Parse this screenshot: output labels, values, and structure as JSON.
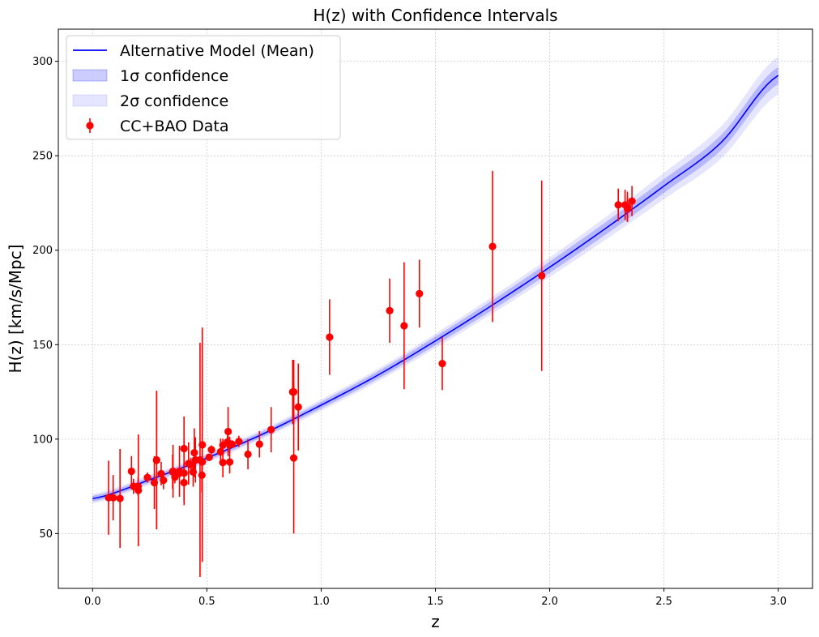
{
  "chart_data": {
    "type": "line",
    "title": "H(z) with Confidence Intervals",
    "xlabel": "z",
    "ylabel": "H(z) [km/s/Mpc]",
    "xlim": [
      -0.15,
      3.15
    ],
    "ylim": [
      21,
      317
    ],
    "xticks": [
      0.0,
      0.5,
      1.0,
      1.5,
      2.0,
      2.5,
      3.0
    ],
    "xtick_labels": [
      "0.0",
      "0.5",
      "1.0",
      "1.5",
      "2.0",
      "2.5",
      "3.0"
    ],
    "yticks": [
      50,
      100,
      150,
      200,
      250,
      300
    ],
    "ytick_labels": [
      "50",
      "100",
      "150",
      "200",
      "250",
      "300"
    ],
    "grid": true,
    "legend_position": "top-left",
    "colors": {
      "model": "#0000ff",
      "band1": "#0000ff",
      "band2": "#0000ff",
      "data": "#ff0000"
    },
    "legend": [
      {
        "label": "Alternative Model (Mean)",
        "kind": "line"
      },
      {
        "label": "1σ confidence",
        "kind": "band1"
      },
      {
        "label": "2σ confidence",
        "kind": "band2"
      },
      {
        "label": "CC+BAO Data",
        "kind": "errorbar"
      }
    ],
    "model": {
      "name": "Alternative Model (Mean)",
      "z": [
        0.0,
        0.25,
        0.5,
        0.75,
        1.0,
        1.25,
        1.5,
        1.75,
        2.0,
        2.25,
        2.5,
        2.75,
        3.0
      ],
      "H": [
        68.5,
        78.5,
        90.0,
        103.0,
        118.0,
        134.0,
        152.0,
        171.0,
        191.0,
        212.0,
        234.0,
        257.0,
        292.5
      ],
      "sigma1": [
        1.5,
        1.5,
        1.5,
        1.5,
        1.8,
        2.0,
        2.3,
        2.6,
        3.0,
        3.3,
        3.6,
        4.0,
        4.5
      ],
      "sigma2": [
        2.5,
        2.5,
        2.5,
        2.5,
        3.0,
        3.3,
        3.8,
        4.5,
        5.2,
        6.0,
        7.0,
        8.5,
        10.0
      ]
    },
    "data": {
      "name": "CC+BAO Data",
      "z": [
        0.07,
        0.09,
        0.12,
        0.17,
        0.179,
        0.199,
        0.2,
        0.24,
        0.27,
        0.28,
        0.28,
        0.3,
        0.31,
        0.35,
        0.352,
        0.36,
        0.38,
        0.3802,
        0.4,
        0.4,
        0.4004,
        0.42,
        0.43,
        0.44,
        0.445,
        0.45,
        0.47,
        0.4783,
        0.48,
        0.48,
        0.51,
        0.52,
        0.56,
        0.57,
        0.57,
        0.59,
        0.593,
        0.6,
        0.6,
        0.61,
        0.64,
        0.6797,
        0.73,
        0.7812,
        0.8754,
        0.88,
        0.88,
        0.9,
        1.037,
        1.3,
        1.363,
        1.43,
        1.53,
        1.75,
        1.965,
        2.3,
        2.33,
        2.34,
        2.34,
        2.36
      ],
      "H": [
        69.0,
        69.0,
        68.6,
        83.0,
        75.0,
        75.0,
        72.9,
        79.7,
        77.0,
        88.8,
        89.0,
        81.7,
        78.2,
        82.7,
        83.0,
        79.9,
        81.9,
        83.0,
        77.0,
        95.0,
        82.0,
        87.1,
        86.5,
        82.6,
        92.8,
        89.0,
        89.0,
        80.9,
        97.0,
        87.9,
        90.4,
        94.4,
        93.3,
        87.6,
        96.8,
        98.5,
        104.0,
        87.9,
        97.3,
        97.3,
        98.8,
        92.0,
        97.3,
        105.0,
        125.0,
        90.0,
        125.0,
        117.0,
        154.0,
        168.0,
        160.0,
        177.0,
        140.0,
        202.0,
        186.5,
        224.0,
        224.0,
        222.0,
        223.0,
        226.0
      ],
      "err": [
        19.6,
        12.0,
        26.2,
        8.0,
        4.0,
        5.0,
        29.6,
        2.7,
        14.0,
        36.6,
        36.6,
        6.2,
        4.7,
        9.1,
        14.0,
        3.3,
        1.9,
        13.5,
        10.2,
        17.0,
        17.0,
        11.2,
        3.7,
        7.8,
        12.9,
        12.0,
        62.0,
        9.0,
        62.0,
        6.0,
        1.9,
        2.3,
        7.0,
        7.8,
        3.4,
        3.4,
        13.0,
        6.1,
        4.0,
        2.1,
        3.0,
        8.0,
        7.0,
        12.0,
        17.0,
        40.0,
        17.0,
        23.0,
        20.0,
        17.0,
        33.6,
        18.0,
        14.0,
        40.0,
        50.4,
        8.6,
        8.0,
        7.0,
        8.0,
        8.0
      ]
    }
  }
}
